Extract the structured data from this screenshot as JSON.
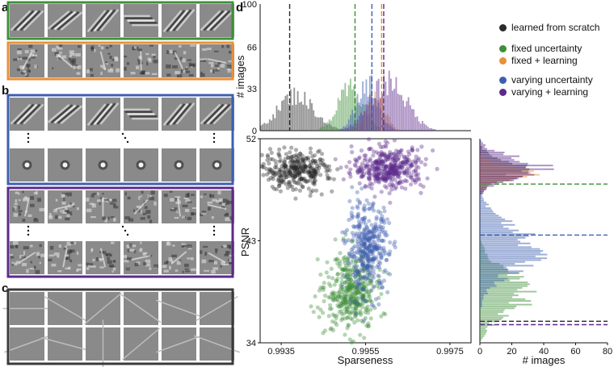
{
  "panel_labels": {
    "a": "a",
    "b": "b",
    "c": "c",
    "d": "d"
  },
  "colors": {
    "scratch": "#2b2b2b",
    "fixed_uncertainty": "#3f8f3a",
    "fixed_learning": "#e8903a",
    "varying_uncertainty": "#3e5fb0",
    "varying_learning": "#5b2a8c",
    "panel_bg": "#8a8a8a"
  },
  "legend": [
    {
      "label": "learned from scratch",
      "color": "#2b2b2b"
    },
    {
      "label": "fixed uncertainty",
      "color": "#3f8f3a"
    },
    {
      "label": "fixed + learning",
      "color": "#e8903a"
    },
    {
      "label": "varying uncertainty",
      "color": "#3e5fb0"
    },
    {
      "label": "varying + learning",
      "color": "#5b2a8c"
    }
  ],
  "chart_data": {
    "type": "scatter",
    "xlabel": "Sparseness",
    "ylabel": "PSNR",
    "xlim": [
      0.993,
      0.998
    ],
    "ylim": [
      34,
      52
    ],
    "x_ticks": [
      "0.9935",
      "0.9955",
      "0.9975"
    ],
    "y_ticks": [
      "34",
      "43",
      "52"
    ],
    "top_hist": {
      "ylabel": "# images",
      "ylim": [
        0,
        100
      ],
      "y_ticks": [
        "0",
        "33",
        "66",
        "100"
      ]
    },
    "right_hist": {
      "xlabel": "# images",
      "xlim": [
        0,
        80
      ],
      "x_ticks": [
        "0",
        "20",
        "40",
        "60",
        "80"
      ]
    },
    "series": [
      {
        "name": "learned from scratch",
        "color": "#2b2b2b",
        "x_mean": 0.99385,
        "x_sd": 0.00042,
        "y_mean": 49.2,
        "y_sd": 0.85,
        "n": 320,
        "hist_peak": 36
      },
      {
        "name": "fixed uncertainty",
        "color": "#3f8f3a",
        "x_mean": 0.99515,
        "x_sd": 0.0003,
        "y_mean": 38.5,
        "y_sd": 1.7,
        "n": 420,
        "hist_peak": 42
      },
      {
        "name": "fixed + learning",
        "color": "#e8903a",
        "x_mean": 0.99575,
        "x_sd": 0.0002,
        "y_mean": 49.0,
        "y_sd": 0.6,
        "n": 0,
        "hist_peak": 40
      },
      {
        "name": "varying uncertainty",
        "color": "#3e5fb0",
        "x_mean": 0.99555,
        "x_sd": 0.00025,
        "y_mean": 42.3,
        "y_sd": 1.9,
        "n": 380,
        "hist_peak": 48
      },
      {
        "name": "varying + learning",
        "color": "#5b2a8c",
        "x_mean": 0.99605,
        "x_sd": 0.00042,
        "y_mean": 49.4,
        "y_sd": 0.9,
        "n": 400,
        "hist_peak": 50
      }
    ],
    "median_lines_x": [
      {
        "value": 0.9937,
        "color": "#2b2b2b"
      },
      {
        "value": 0.99525,
        "color": "#3f8f3a"
      },
      {
        "value": 0.99565,
        "color": "#3e5fb0"
      },
      {
        "value": 0.99588,
        "color": "#e8903a"
      },
      {
        "value": 0.99593,
        "color": "#5b2a8c"
      }
    ],
    "median_lines_y": [
      {
        "value": 48.0,
        "color": "#3f8f3a"
      },
      {
        "value": 43.5,
        "color": "#3e5fb0"
      },
      {
        "value": 35.9,
        "color": "#2b2b2b"
      },
      {
        "value": 35.6,
        "color": "#5b2a8c"
      }
    ]
  },
  "panels": {
    "a_rows": [
      {
        "color": "#3f8f3a"
      },
      {
        "color": "#e8903a"
      }
    ],
    "b_groups": [
      {
        "color": "#3e5fb0"
      },
      {
        "color": "#5b2a8c"
      }
    ],
    "c_border": "#3a3a3a"
  }
}
